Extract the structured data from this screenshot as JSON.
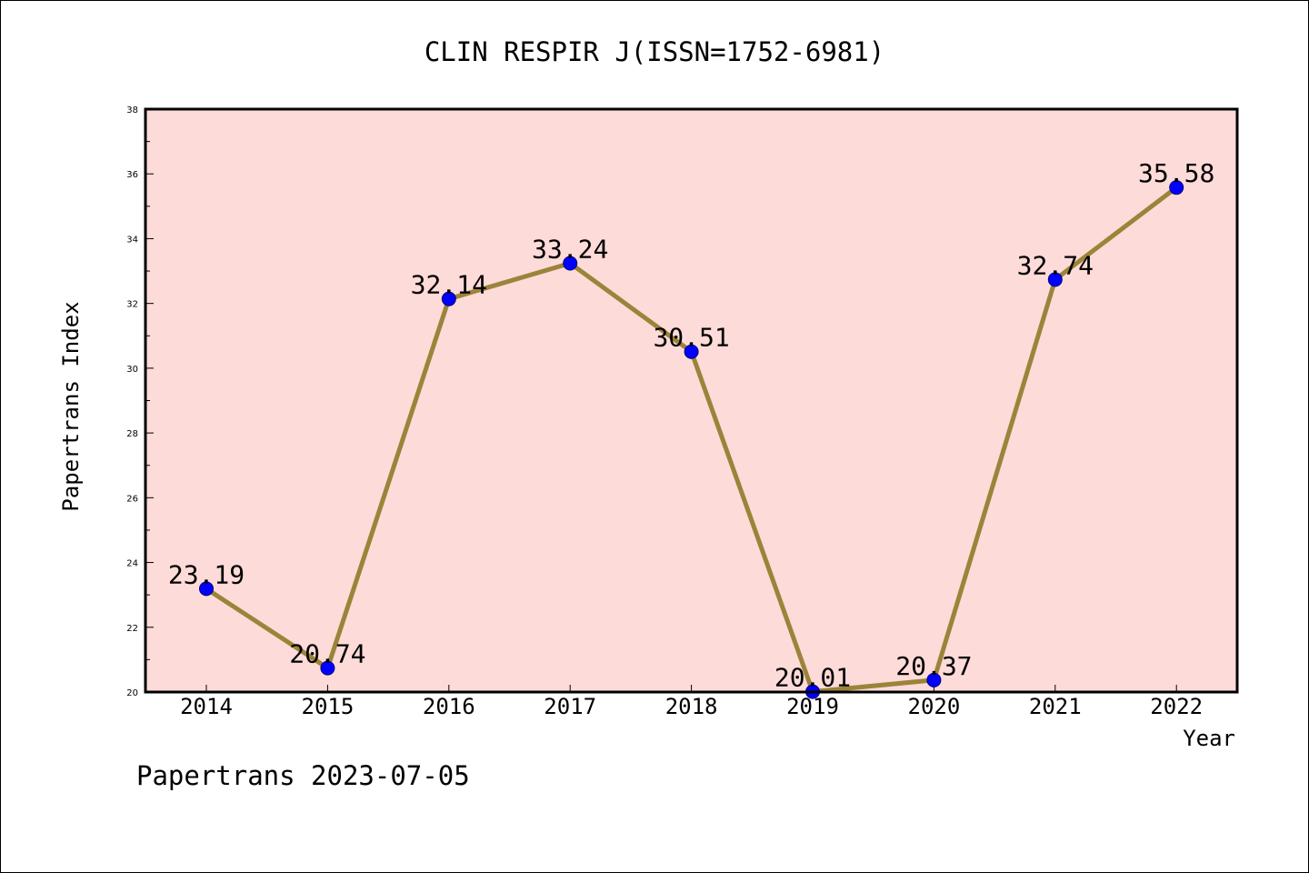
{
  "chart_data": {
    "type": "line",
    "title": "CLIN RESPIR J(ISSN=1752-6981)",
    "xlabel": "Year",
    "ylabel": "Papertrans Index",
    "categories": [
      "2014",
      "2015",
      "2016",
      "2017",
      "2018",
      "2019",
      "2020",
      "2021",
      "2022"
    ],
    "series": [
      {
        "values": [
          23.19,
          20.74,
          32.14,
          33.24,
          30.51,
          20.01,
          20.37,
          32.74,
          35.58
        ]
      }
    ],
    "value_labels": [
      "23.19",
      "20.74",
      "32.14",
      "33.24",
      "30.51",
      "20.01",
      "20.37",
      "32.74",
      "35.58"
    ],
    "yticks": [
      "20",
      "22",
      "24",
      "26",
      "28",
      "30",
      "32",
      "34",
      "36",
      "38"
    ],
    "ylim": [
      20,
      38
    ],
    "grid": false,
    "colors": {
      "plot_background": "#fddbd9",
      "line": "#9b8439",
      "marker": "#0000ff",
      "marker_edge": "#00007a"
    }
  },
  "footer": {
    "text": "Papertrans 2023-07-05"
  }
}
